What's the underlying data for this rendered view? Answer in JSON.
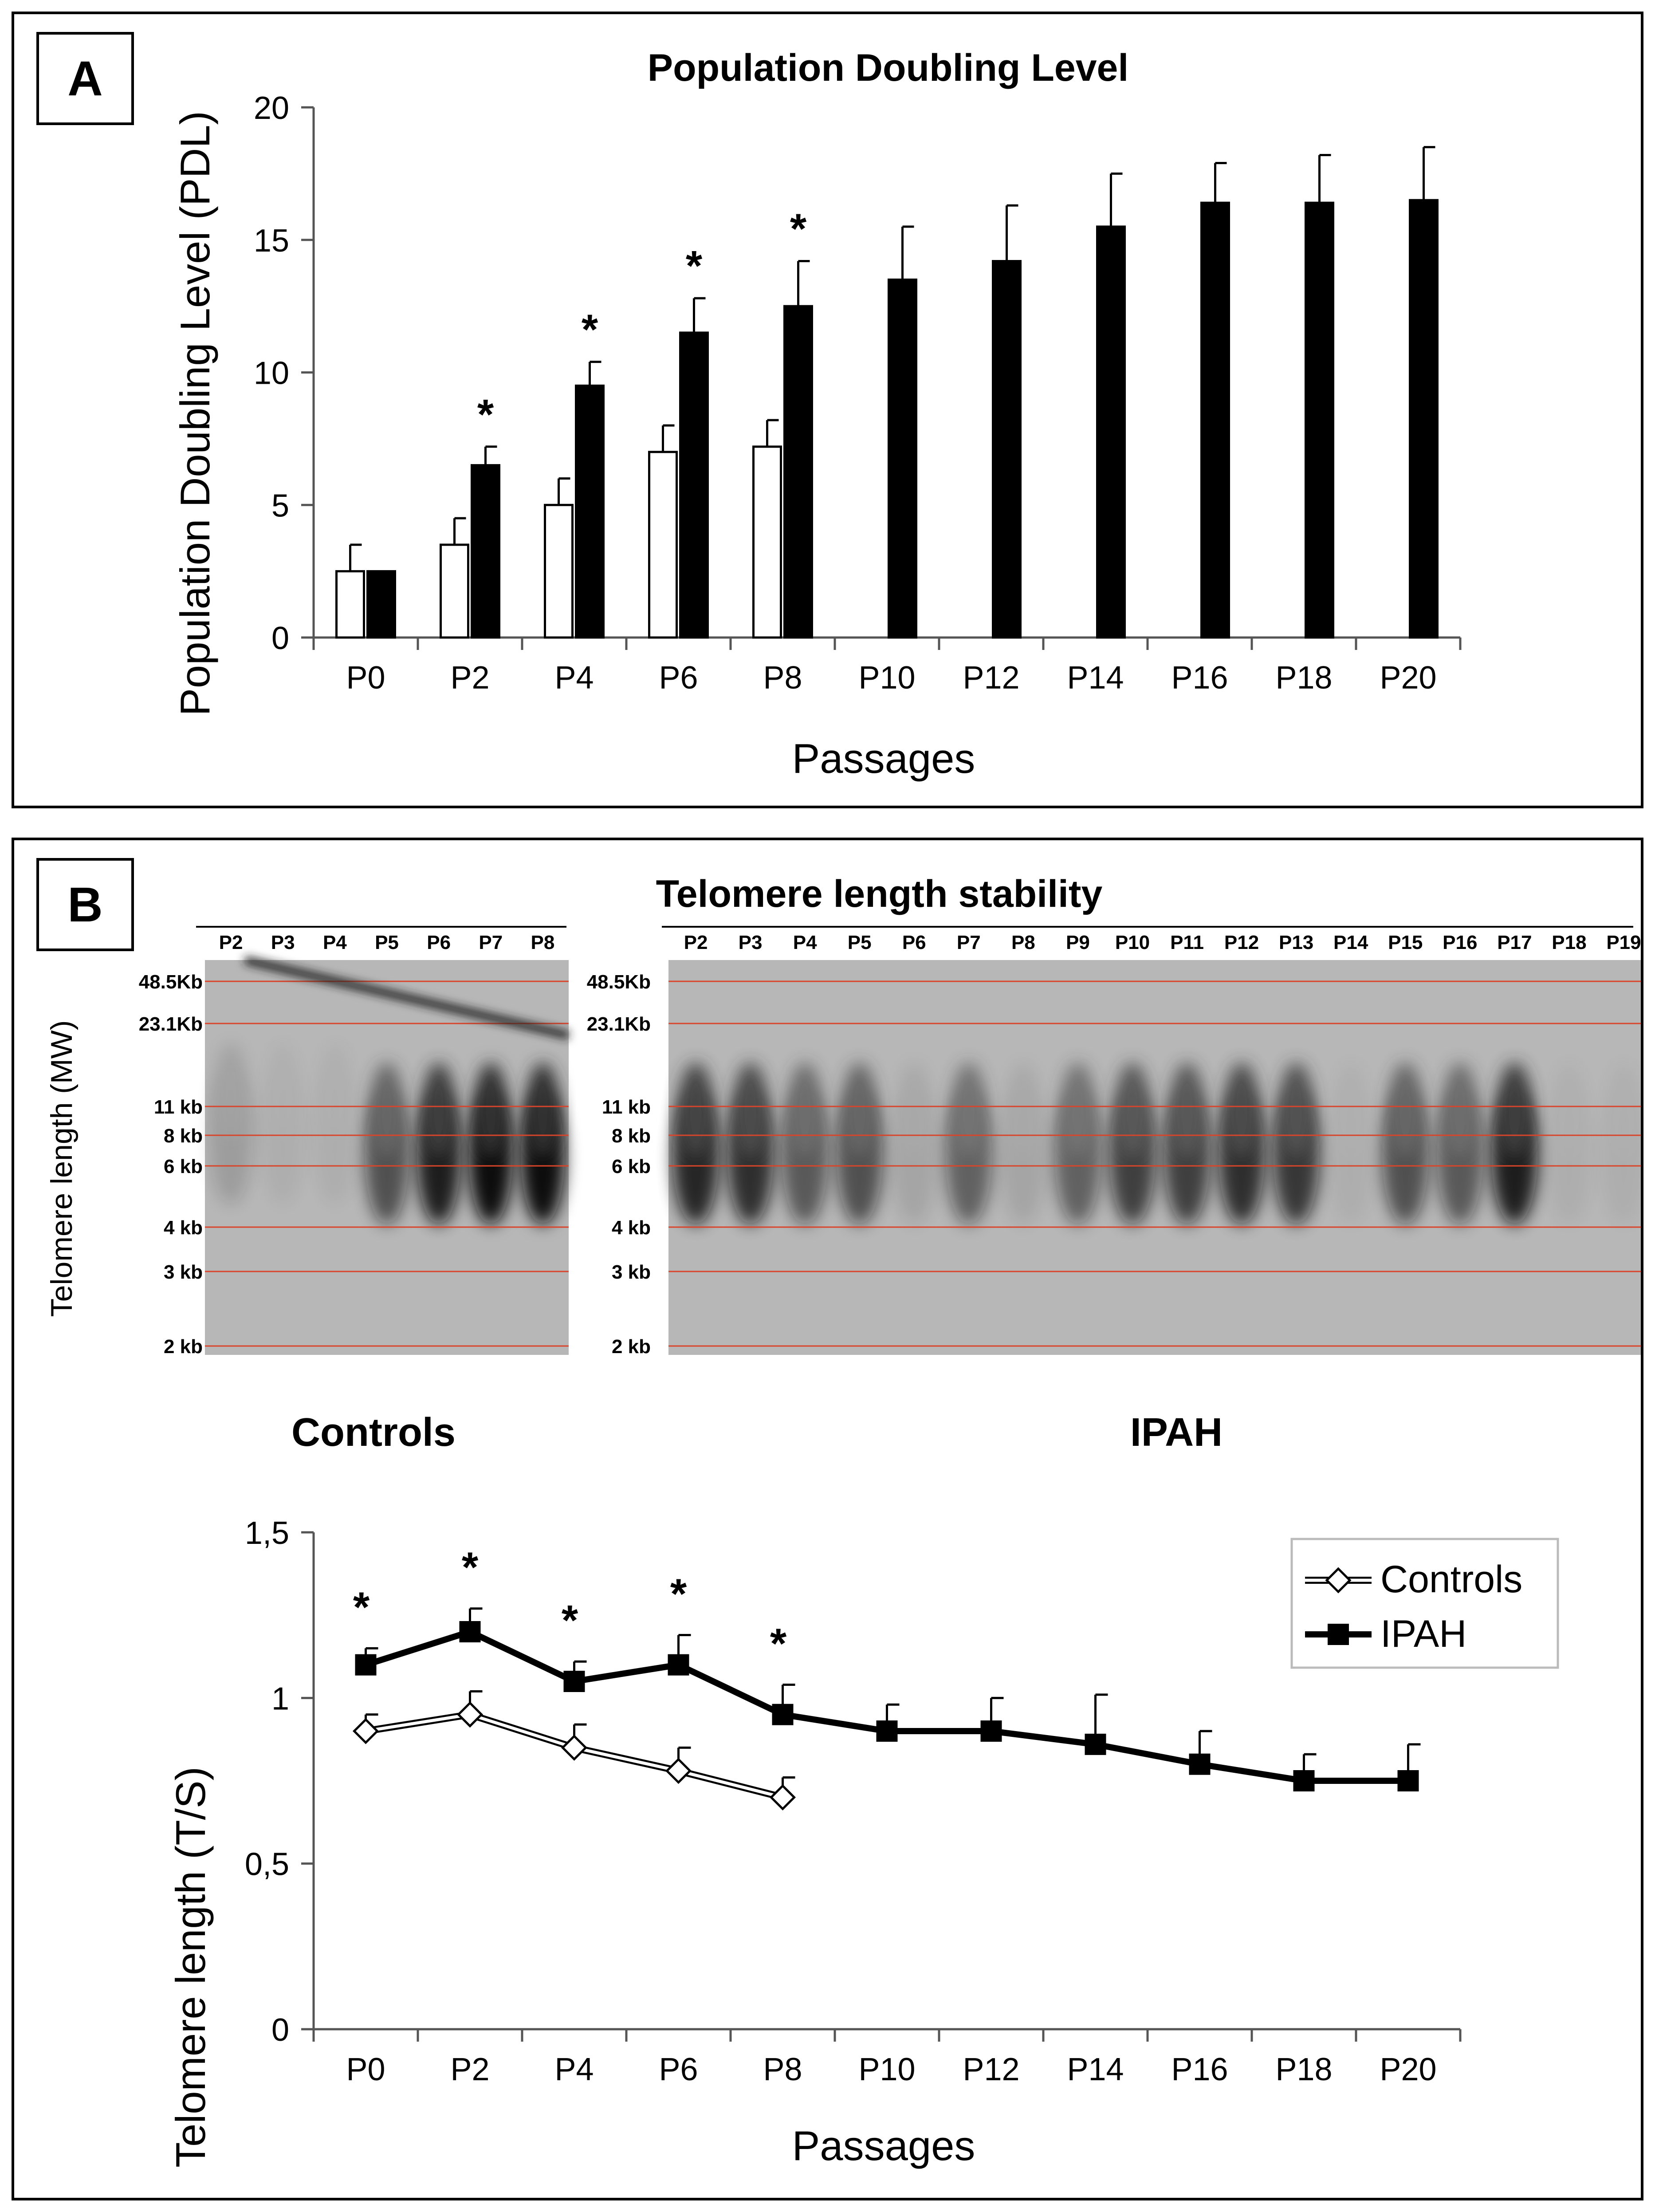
{
  "panel_a": {
    "label": "A"
  },
  "panel_b": {
    "label": "B",
    "title": "Telomere length stability",
    "blot_ylabel": "Telomere length (MW)",
    "controls_caption": "Controls",
    "ipah_caption": "IPAH",
    "controls_lanes": [
      "P2",
      "P3",
      "P4",
      "P5",
      "P6",
      "P7",
      "P8"
    ],
    "ipah_lanes": [
      "P2",
      "P3",
      "P4",
      "P5",
      "P6",
      "P7",
      "P8",
      "P9",
      "P10",
      "P11",
      "P12",
      "P13",
      "P14",
      "P15",
      "P16",
      "P17",
      "P18",
      "P19"
    ],
    "marker_labels": [
      "48.5Kb",
      "23.1Kb",
      "11 kb",
      "8 kb",
      "6 kb",
      "4 kb",
      "3 kb",
      "2 kb"
    ],
    "marker_labels_ipah": [
      "48.5Kb",
      "23.1Kb",
      "11 kb",
      "8 kb",
      "6 kb",
      "4 kb",
      "3 kb",
      "2 kb"
    ]
  },
  "chart_data": [
    {
      "type": "bar",
      "title": "Population Doubling Level",
      "xlabel": "Passages",
      "ylabel": "Population Doubling Level (PDL)",
      "ylim": [
        0,
        20
      ],
      "yticks": [
        "0",
        "5",
        "10",
        "15",
        "20"
      ],
      "categories": [
        "P0",
        "P2",
        "P4",
        "P6",
        "P8",
        "P10",
        "P12",
        "P14",
        "P16",
        "P18",
        "P20"
      ],
      "series": [
        {
          "name": "Controls",
          "color": "#ffffff",
          "values": [
            2.5,
            3.5,
            5.0,
            7.0,
            7.2,
            null,
            null,
            null,
            null,
            null,
            null
          ],
          "errors": [
            1.0,
            1.0,
            1.0,
            1.0,
            1.0,
            null,
            null,
            null,
            null,
            null,
            null
          ]
        },
        {
          "name": "IPAH",
          "color": "#000000",
          "values": [
            2.5,
            6.5,
            9.5,
            11.5,
            12.5,
            13.5,
            14.2,
            15.5,
            16.4,
            16.4,
            16.5
          ],
          "errors": [
            0,
            0.7,
            0.9,
            1.3,
            1.7,
            2.0,
            2.1,
            2.0,
            1.5,
            1.8,
            2.0
          ]
        }
      ],
      "significance": [
        "",
        "*",
        "*",
        "*",
        "*",
        "",
        "",
        "",
        "",
        "",
        ""
      ],
      "grid": false
    },
    {
      "type": "line",
      "xlabel": "Passages",
      "ylabel": "Telomere length (T/S)",
      "ylim": [
        0,
        1.5
      ],
      "yticks": [
        "0",
        "0,5",
        "1",
        "1,5"
      ],
      "categories": [
        "P0",
        "P2",
        "P4",
        "P6",
        "P8",
        "P10",
        "P12",
        "P14",
        "P16",
        "P18",
        "P20"
      ],
      "series": [
        {
          "name": "Controls",
          "marker": "open-diamond",
          "values": [
            0.9,
            0.95,
            0.85,
            0.78,
            0.7,
            null,
            null,
            null,
            null,
            null,
            null
          ],
          "errors": [
            0.05,
            0.07,
            0.07,
            0.07,
            0.06,
            null,
            null,
            null,
            null,
            null,
            null
          ]
        },
        {
          "name": "IPAH",
          "marker": "filled-square",
          "values": [
            1.1,
            1.2,
            1.05,
            1.1,
            0.95,
            0.9,
            0.9,
            0.86,
            0.8,
            0.75,
            0.75
          ],
          "errors": [
            0.05,
            0.07,
            0.06,
            0.09,
            0.09,
            0.08,
            0.1,
            0.15,
            0.1,
            0.08,
            0.11
          ]
        }
      ],
      "significance": [
        "*",
        "*",
        "*",
        "*",
        "*",
        "",
        "",
        "",
        "",
        "",
        ""
      ],
      "legend": {
        "position": "top-right",
        "entries": [
          "Controls",
          "IPAH"
        ]
      },
      "grid": false
    }
  ]
}
